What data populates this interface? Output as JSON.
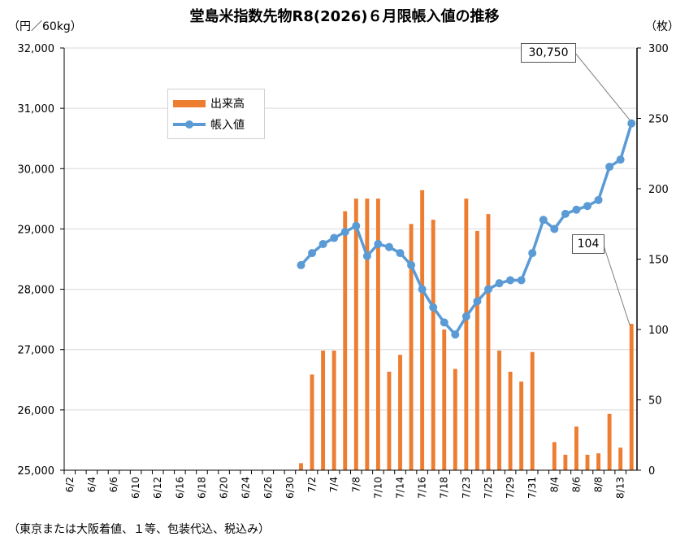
{
  "chart_data": {
    "type": "bar+line",
    "title": "堂島米指数先物R8(2026)６月限帳入値の推移",
    "left_unit": "（円／60kg）",
    "right_unit": "（枚）",
    "footnote": "（東京または大阪着値、１等、包装代込、税込み）",
    "left_axis": {
      "min": 25000,
      "max": 32000,
      "step": 1000,
      "tick_labels": [
        "25,000",
        "26,000",
        "27,000",
        "28,000",
        "29,000",
        "30,000",
        "31,000",
        "32,000"
      ]
    },
    "right_axis": {
      "min": 0,
      "max": 300,
      "step": 50,
      "tick_labels": [
        "0",
        "50",
        "100",
        "150",
        "200",
        "250",
        "300"
      ]
    },
    "x_tick_labels": [
      "6/2",
      "6/4",
      "6/6",
      "6/10",
      "6/12",
      "6/16",
      "6/18",
      "6/20",
      "6/24",
      "6/26",
      "6/30",
      "7/2",
      "7/4",
      "7/8",
      "7/10",
      "7/14",
      "7/16",
      "7/18",
      "7/23",
      "7/25",
      "7/29",
      "7/31",
      "8/4",
      "8/6",
      "8/8",
      "8/13"
    ],
    "categories": [
      "6/2",
      "6/3",
      "6/4",
      "6/5",
      "6/6",
      "6/9",
      "6/10",
      "6/11",
      "6/12",
      "6/13",
      "6/16",
      "6/17",
      "6/18",
      "6/19",
      "6/20",
      "6/23",
      "6/24",
      "6/25",
      "6/26",
      "6/27",
      "6/30",
      "7/1",
      "7/2",
      "7/3",
      "7/4",
      "7/7",
      "7/8",
      "7/9",
      "7/10",
      "7/11",
      "7/14",
      "7/15",
      "7/16",
      "7/17",
      "7/18",
      "7/22",
      "7/23",
      "7/24",
      "7/25",
      "7/28",
      "7/29",
      "7/30",
      "7/31",
      "8/1",
      "8/4",
      "8/5",
      "8/6",
      "8/7",
      "8/8",
      "8/12",
      "8/13",
      "8/14"
    ],
    "series": [
      {
        "name": "出来高",
        "type": "bar",
        "axis": "right",
        "color": "#ED7D31",
        "values": [
          0,
          0,
          0,
          0,
          0,
          0,
          0,
          0,
          0,
          0,
          0,
          0,
          0,
          0,
          0,
          0,
          0,
          0,
          0,
          0,
          0,
          5,
          68,
          85,
          85,
          184,
          193,
          193,
          193,
          70,
          82,
          175,
          199,
          178,
          100,
          72,
          193,
          170,
          182,
          85,
          70,
          63,
          84,
          0,
          20,
          11,
          31,
          11,
          12,
          40,
          16,
          104
        ]
      },
      {
        "name": "帳入値",
        "type": "line",
        "axis": "left",
        "color": "#5B9BD5",
        "values": [
          null,
          null,
          null,
          null,
          null,
          null,
          null,
          null,
          null,
          null,
          null,
          null,
          null,
          null,
          null,
          null,
          null,
          null,
          null,
          null,
          null,
          28400,
          28600,
          28750,
          28850,
          28950,
          29050,
          28550,
          28750,
          28700,
          28600,
          28400,
          28000,
          27700,
          27450,
          27250,
          27550,
          27800,
          28000,
          28100,
          28150,
          28150,
          28600,
          29150,
          29000,
          29250,
          29320,
          29380,
          29480,
          30030,
          30150,
          30750
        ]
      }
    ],
    "annotations": [
      {
        "text": "30,750",
        "points_to": "帳入値 8/14"
      },
      {
        "text": "104",
        "points_to": "出来高 8/14"
      }
    ],
    "grid": true,
    "legend": "upper-left inside plot"
  }
}
